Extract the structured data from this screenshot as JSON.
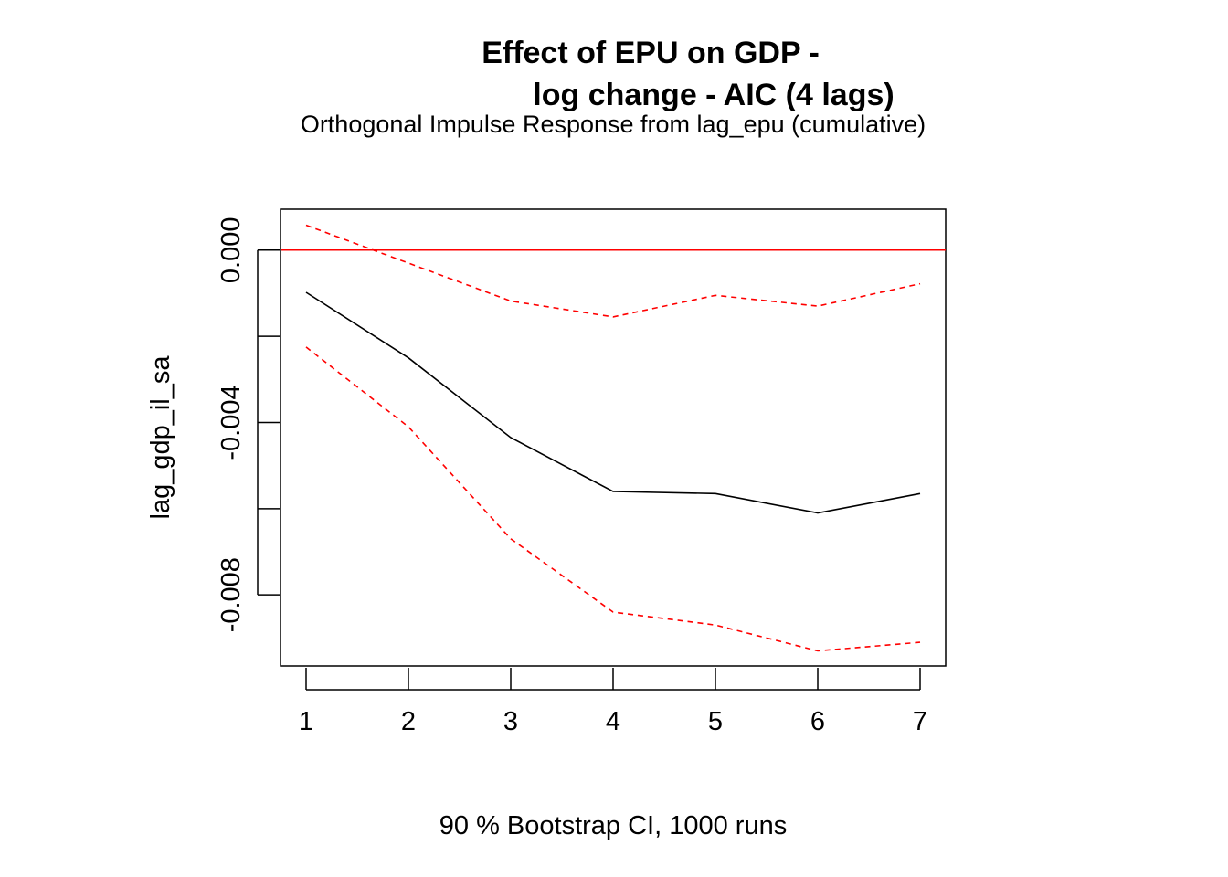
{
  "chart_data": {
    "type": "line",
    "title_line1": "Effect of EPU on GDP -",
    "title_line2": "log change - AIC (4 lags)",
    "subtitle": "Orthogonal Impulse Response from lag_epu (cumulative)",
    "xlabel": "90 % Bootstrap CI,  1000 runs",
    "ylabel": "lag_gdp_il_sa",
    "x": [
      1,
      2,
      3,
      4,
      5,
      6,
      7
    ],
    "xticks": [
      "1",
      "2",
      "3",
      "4",
      "5",
      "6",
      "7"
    ],
    "yticks": [
      0.0,
      -0.002,
      -0.004,
      -0.006,
      -0.008
    ],
    "ytick_labels": [
      "0.000",
      "",
      "-0.004",
      "",
      "-0.008"
    ],
    "xlim": [
      0.75,
      7.25
    ],
    "ylim": [
      -0.00965,
      0.00095
    ],
    "zero_line": 0,
    "series": [
      {
        "role": "irf",
        "color": "#000000",
        "dash": "solid",
        "values": [
          -0.00098,
          -0.0025,
          -0.00435,
          -0.0056,
          -0.00565,
          -0.0061,
          -0.00565
        ]
      },
      {
        "role": "upper",
        "color": "#ff0000",
        "dash": "dashed",
        "values": [
          0.00058,
          -0.0003,
          -0.00118,
          -0.00155,
          -0.00105,
          -0.0013,
          -0.00078
        ]
      },
      {
        "role": "lower",
        "color": "#ff0000",
        "dash": "dashed",
        "values": [
          -0.00225,
          -0.0041,
          -0.0067,
          -0.0084,
          -0.0087,
          -0.0093,
          -0.0091
        ]
      }
    ],
    "grid": false,
    "legend": "none"
  }
}
